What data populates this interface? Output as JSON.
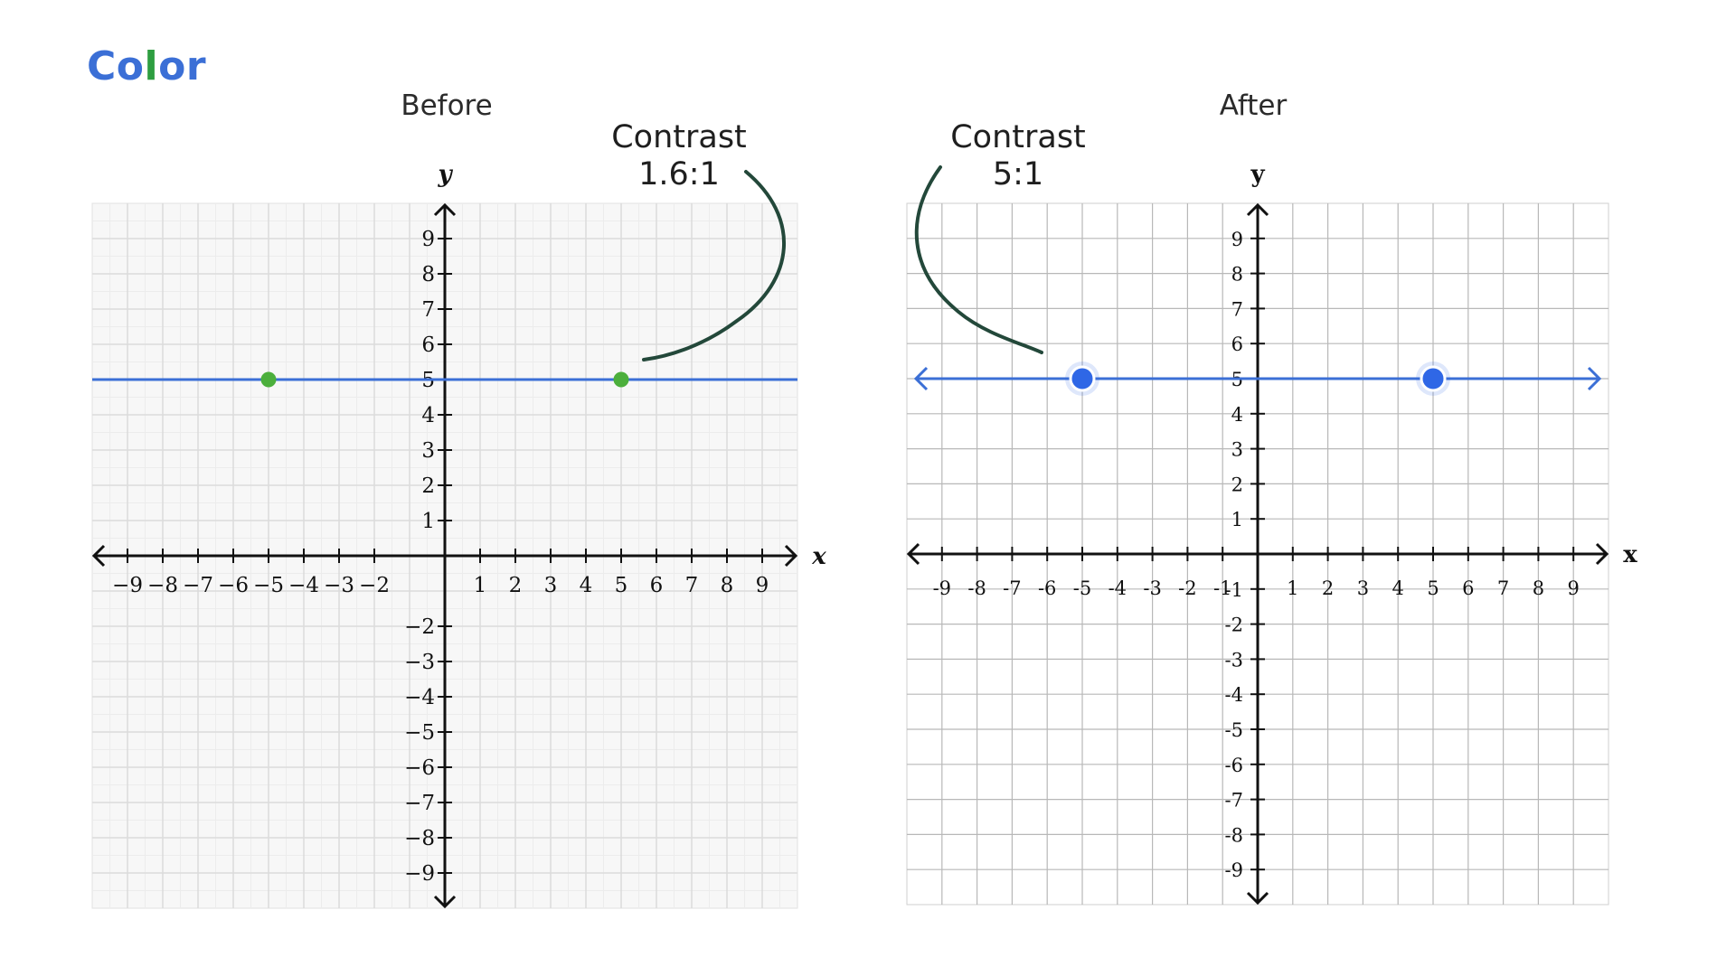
{
  "slide": {
    "title_letters": [
      {
        "ch": "C",
        "color": "#3b6fd6"
      },
      {
        "ch": "o",
        "color": "#3b6fd6"
      },
      {
        "ch": "l",
        "color": "#2e9e41"
      },
      {
        "ch": "o",
        "color": "#3b6fd6"
      },
      {
        "ch": "r",
        "color": "#3b6fd6"
      }
    ]
  },
  "panels": {
    "before": {
      "label": "Before",
      "callout_line1": "Contrast",
      "callout_line2": "1.6:1"
    },
    "after": {
      "label": "After",
      "callout_line1": "Contrast",
      "callout_line2": "5:1"
    }
  },
  "colors": {
    "line_blue": "#3b6fd6",
    "point_green_before": "#4caf3c",
    "point_blue_after": "#2f67e6",
    "callout_curve": "#23483a",
    "grid_before": "#dcdcdc",
    "grid_after": "#b8b8b8",
    "axis": "#111111"
  },
  "chart_data": [
    {
      "type": "line",
      "panel": "Before",
      "xlabel": "x",
      "ylabel": "y",
      "xlim": [
        -10,
        10
      ],
      "ylim": [
        -10,
        10
      ],
      "grid": true,
      "x_ticks": [
        -9,
        -8,
        -7,
        -6,
        -5,
        -4,
        -3,
        -2,
        1,
        2,
        3,
        4,
        5,
        6,
        7,
        8,
        9
      ],
      "x_tick_labels": [
        "−9",
        "−8",
        "−7",
        "−6",
        "−5",
        "−4",
        "−3",
        "−2",
        "1",
        "2",
        "3",
        "4",
        "5",
        "6",
        "7",
        "8",
        "9"
      ],
      "y_ticks": [
        9,
        8,
        7,
        6,
        5,
        4,
        3,
        2,
        1,
        -2,
        -3,
        -4,
        -5,
        -6,
        -7,
        -8,
        -9
      ],
      "y_tick_labels": [
        "9",
        "8",
        "7",
        "6",
        "5",
        "4",
        "3",
        "2",
        "1",
        "−2",
        "−3",
        "−4",
        "−5",
        "−6",
        "−7",
        "−8",
        "−9"
      ],
      "series": [
        {
          "line_y": 5,
          "points": [
            {
              "x": -5,
              "y": 5
            },
            {
              "x": 5,
              "y": 5
            }
          ],
          "point_color": "#4caf3c",
          "line_arrows": false
        }
      ],
      "annotation": "Contrast 1.6:1"
    },
    {
      "type": "line",
      "panel": "After",
      "xlabel": "x",
      "ylabel": "y",
      "xlim": [
        -10,
        10
      ],
      "ylim": [
        -10,
        10
      ],
      "grid": true,
      "x_ticks": [
        -9,
        -8,
        -7,
        -6,
        -5,
        -4,
        -3,
        -2,
        -1,
        1,
        2,
        3,
        4,
        5,
        6,
        7,
        8,
        9
      ],
      "x_tick_labels": [
        "-9",
        "-8",
        "-7",
        "-6",
        "-5",
        "-4",
        "-3",
        "-2",
        "-1",
        "1",
        "2",
        "3",
        "4",
        "5",
        "6",
        "7",
        "8",
        "9"
      ],
      "y_ticks": [
        9,
        8,
        7,
        6,
        5,
        4,
        3,
        2,
        1,
        -1,
        -2,
        -3,
        -4,
        -5,
        -6,
        -7,
        -8,
        -9
      ],
      "y_tick_labels": [
        "9",
        "8",
        "7",
        "6",
        "5",
        "4",
        "3",
        "2",
        "1",
        "-1",
        "-2",
        "-3",
        "-4",
        "-5",
        "-6",
        "-7",
        "-8",
        "-9"
      ],
      "series": [
        {
          "line_y": 5,
          "points": [
            {
              "x": -5,
              "y": 5
            },
            {
              "x": 5,
              "y": 5
            }
          ],
          "point_color": "#2f67e6",
          "line_arrows": true
        }
      ],
      "annotation": "Contrast 5:1"
    }
  ]
}
